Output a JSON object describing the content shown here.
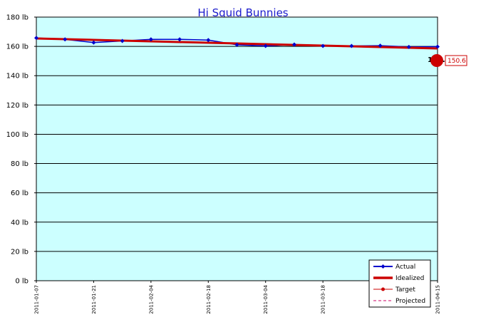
{
  "chart_data": {
    "type": "line",
    "title": "Hi Squid Bunnies",
    "xlabel": "",
    "ylabel": "",
    "ylim": [
      0,
      180
    ],
    "y_ticks": [
      0,
      20,
      40,
      60,
      80,
      100,
      120,
      140,
      160,
      180
    ],
    "y_tick_labels": [
      "0 lb",
      "20 lb",
      "40 lb",
      "60 lb",
      "80 lb",
      "100 lb",
      "120 lb",
      "140 lb",
      "160 lb",
      "180 lb"
    ],
    "x_range": [
      "2011-01-07",
      "2011-04-15"
    ],
    "x_tick_labels": [
      "2011-01-07",
      "2011-01-21",
      "2011-02-04",
      "2011-02-18",
      "2011-03-04",
      "2011-03-18",
      "2011-04-15"
    ],
    "x_partial_label": "201",
    "grid": true,
    "background_color": "#ccffff",
    "legend_position": "bottom-right",
    "series": [
      {
        "name": "Actual",
        "color": "#0000cc",
        "style": "line-diamond",
        "x": [
          "2011-01-07",
          "2011-01-14",
          "2011-01-21",
          "2011-01-28",
          "2011-02-04",
          "2011-02-11",
          "2011-02-18",
          "2011-02-25",
          "2011-03-04",
          "2011-03-11",
          "2011-03-18",
          "2011-03-25",
          "2011-04-01",
          "2011-04-08",
          "2011-04-15"
        ],
        "y": [
          165.8,
          164.8,
          162.6,
          163.7,
          164.8,
          164.8,
          164.3,
          161.1,
          160.3,
          161.3,
          160.3,
          160.3,
          160.5,
          159.6,
          159.8
        ]
      },
      {
        "name": "Idealized",
        "color": "#cc0000",
        "style": "thick-line",
        "x": [
          "2011-01-07",
          "2011-04-15"
        ],
        "y": [
          165.4,
          158.6
        ]
      },
      {
        "name": "Target",
        "color": "#cc0000",
        "style": "line-dot",
        "x": [
          "2011-04-15"
        ],
        "y": [
          150.6
        ]
      },
      {
        "name": "Projected",
        "color": "#cc0066",
        "style": "dashed",
        "x": [],
        "y": []
      }
    ],
    "annotations": {
      "end_label": "158.8",
      "target_label": "150.6"
    }
  }
}
